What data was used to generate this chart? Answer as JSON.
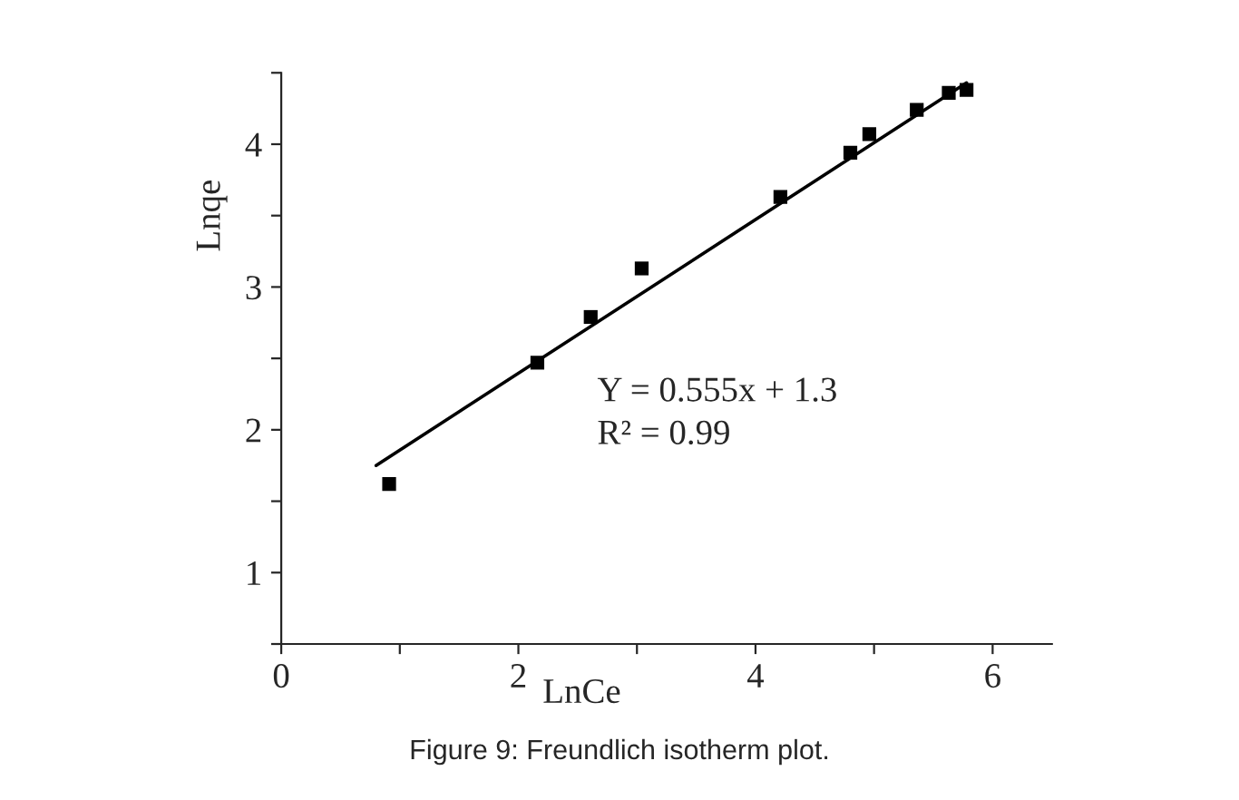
{
  "chart_data": {
    "type": "scatter",
    "xlabel": "LnCe",
    "ylabel": "Lnqe",
    "annotations": [
      "Y = 0.555x + 1.3",
      "R² = 0.99",
      "Figure 9: Freundlich isotherm plot."
    ],
    "series": [
      {
        "color": "#000000",
        "marker": "square",
        "x": [
          0.91,
          2.16,
          2.61,
          3.04,
          4.21,
          4.8,
          4.96,
          5.36,
          5.63,
          5.78
        ],
        "values": [
          1.62,
          2.47,
          2.79,
          3.13,
          3.63,
          3.94,
          4.07,
          4.24,
          4.36,
          4.38
        ]
      },
      {
        "type": "line",
        "color": "#000000",
        "marker": "none",
        "line_style": "solid",
        "x": [
          0.8,
          5.78
        ],
        "values": [
          1.75,
          4.43
        ]
      }
    ],
    "xlim": [
      0,
      6.5
    ],
    "ylim": [
      0.5,
      4.5
    ],
    "xticks": [
      0,
      {
        "value": 1,
        "label": null
      },
      2,
      {
        "value": 3,
        "label": null
      },
      4,
      {
        "value": 5,
        "label": null
      },
      6
    ],
    "yticks": [
      {
        "value": 0.5,
        "label": null
      },
      1,
      {
        "value": 1.5,
        "label": null
      },
      2,
      {
        "value": 2.5,
        "label": null
      },
      3,
      {
        "value": 3.5,
        "label": null
      },
      4,
      {
        "value": 4.5,
        "label": null
      }
    ],
    "grid": false,
    "legend": false
  }
}
